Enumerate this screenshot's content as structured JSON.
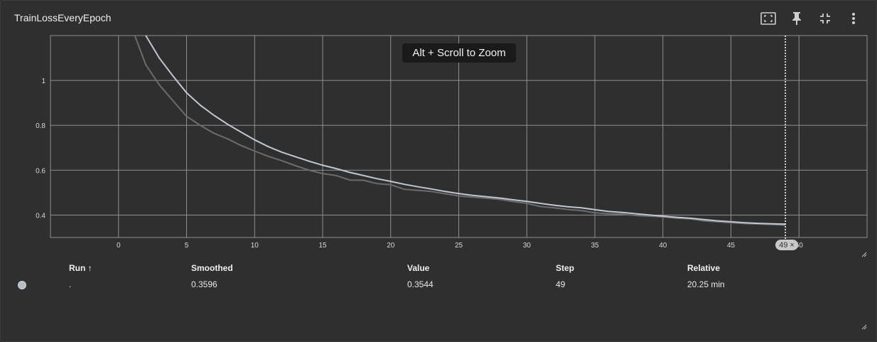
{
  "card": {
    "title": "TrainLossEveryEpoch"
  },
  "toolbar": {
    "icons": [
      "fit-domain-icon",
      "pin-icon",
      "collapse-icon",
      "more-vert-icon"
    ]
  },
  "tooltip": {
    "text": "Alt + Scroll to Zoom"
  },
  "step_badge": {
    "label": "49 ×"
  },
  "chart_data": {
    "type": "line",
    "title": "TrainLossEveryEpoch",
    "xlim": [
      -5,
      55
    ],
    "ylim": [
      0.3,
      1.2
    ],
    "x_ticks": [
      0,
      5,
      10,
      15,
      20,
      25,
      30,
      35,
      40,
      45,
      50
    ],
    "x_tick_labels": [
      "0",
      "5",
      "10",
      "15",
      "20",
      "25",
      "30",
      "35",
      "40",
      "45",
      "50"
    ],
    "y_ticks": [
      0.4,
      0.6,
      0.8,
      1.0
    ],
    "y_tick_labels": [
      "0.4",
      "0.6",
      "0.8",
      "1"
    ],
    "grid": true,
    "hover_step": 49,
    "series": [
      {
        "name": "Smoothed",
        "color": "#c0c7d0",
        "x": [
          2,
          3,
          4,
          5,
          6,
          7,
          8,
          9,
          10,
          11,
          12,
          13,
          14,
          15,
          16,
          17,
          18,
          19,
          20,
          21,
          22,
          23,
          24,
          25,
          26,
          27,
          28,
          29,
          30,
          31,
          32,
          33,
          34,
          35,
          36,
          37,
          38,
          39,
          40,
          41,
          42,
          43,
          44,
          45,
          46,
          47,
          48,
          49
        ],
        "values": [
          1.2,
          1.1,
          1.02,
          0.945,
          0.89,
          0.845,
          0.805,
          0.77,
          0.735,
          0.705,
          0.68,
          0.66,
          0.64,
          0.622,
          0.607,
          0.59,
          0.576,
          0.562,
          0.55,
          0.537,
          0.526,
          0.516,
          0.505,
          0.496,
          0.488,
          0.482,
          0.476,
          0.468,
          0.461,
          0.452,
          0.444,
          0.437,
          0.432,
          0.424,
          0.416,
          0.412,
          0.406,
          0.4,
          0.395,
          0.39,
          0.386,
          0.38,
          0.374,
          0.37,
          0.366,
          0.363,
          0.361,
          0.3596
        ]
      },
      {
        "name": "Value",
        "color": "#6c6c6c",
        "x": [
          1.2,
          2,
          3,
          4,
          5,
          6,
          7,
          8,
          9,
          10,
          11,
          12,
          13,
          14,
          15,
          16,
          17,
          18,
          19,
          20,
          21,
          22,
          23,
          24,
          25,
          26,
          27,
          28,
          29,
          30,
          31,
          32,
          33,
          34,
          35,
          36,
          37,
          38,
          39,
          40,
          41,
          42,
          43,
          44,
          45,
          46,
          47,
          48,
          49
        ],
        "values": [
          1.2,
          1.07,
          0.98,
          0.91,
          0.84,
          0.8,
          0.765,
          0.74,
          0.71,
          0.685,
          0.662,
          0.642,
          0.62,
          0.6,
          0.585,
          0.576,
          0.556,
          0.555,
          0.54,
          0.535,
          0.515,
          0.51,
          0.505,
          0.495,
          0.485,
          0.48,
          0.475,
          0.47,
          0.46,
          0.452,
          0.438,
          0.432,
          0.425,
          0.42,
          0.41,
          0.406,
          0.404,
          0.398,
          0.395,
          0.392,
          0.386,
          0.383,
          0.374,
          0.37,
          0.366,
          0.362,
          0.36,
          0.358,
          0.3544
        ]
      }
    ]
  },
  "table": {
    "headers": {
      "run": "Run ↑",
      "smoothed": "Smoothed",
      "value": "Value",
      "step": "Step",
      "relative": "Relative"
    },
    "rows": [
      {
        "run": ".",
        "smoothed": "0.3596",
        "value": "0.3544",
        "step": "49",
        "relative": "20.25 min"
      }
    ]
  }
}
